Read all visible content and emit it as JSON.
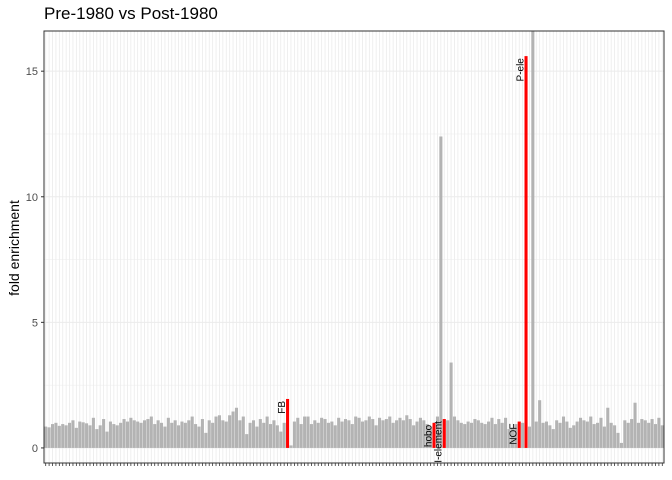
{
  "chart_data": {
    "type": "bar",
    "title": "Pre-1980 vs Post-1980",
    "xlabel": "",
    "ylabel": "fold enrichment",
    "ylim": [
      -0.6,
      16.6
    ],
    "y_ticks": [
      0,
      5,
      10,
      15
    ],
    "grid": true,
    "colors": {
      "default": "#b3b3b3",
      "highlight": "#ff0000"
    },
    "values": [
      0.85,
      0.82,
      0.95,
      1.0,
      0.88,
      0.95,
      0.9,
      1.0,
      1.1,
      0.8,
      1.05,
      1.02,
      0.98,
      0.9,
      1.2,
      0.75,
      0.9,
      1.15,
      0.65,
      1.05,
      0.95,
      0.9,
      1.0,
      1.15,
      1.05,
      1.2,
      1.1,
      1.05,
      1.0,
      1.1,
      1.15,
      1.25,
      0.95,
      1.1,
      1.0,
      0.85,
      1.2,
      1.0,
      1.1,
      0.9,
      1.05,
      1.0,
      1.1,
      1.25,
      0.95,
      0.85,
      1.15,
      0.6,
      1.1,
      1.0,
      1.25,
      1.3,
      1.1,
      1.05,
      1.3,
      1.45,
      1.6,
      1.1,
      1.25,
      0.55,
      1.0,
      1.1,
      0.85,
      1.15,
      1.0,
      1.25,
      0.95,
      1.1,
      0.9,
      0.65,
      1.0,
      1.95,
      0.1,
      1.05,
      1.2,
      0.95,
      1.25,
      1.25,
      0.95,
      1.1,
      1.0,
      1.2,
      1.15,
      1.0,
      1.05,
      0.9,
      1.2,
      1.05,
      1.15,
      1.1,
      0.95,
      1.25,
      1.2,
      1.05,
      1.1,
      1.25,
      1.15,
      0.9,
      1.2,
      1.1,
      1.15,
      1.25,
      1.0,
      1.1,
      1.2,
      1.1,
      1.3,
      1.15,
      0.9,
      1.05,
      1.2,
      1.1,
      0.95,
      0.85,
      1.0,
      1.25,
      12.4,
      1.15,
      1.1,
      3.4,
      1.25,
      1.1,
      1.0,
      0.95,
      1.05,
      1.0,
      1.15,
      1.1,
      1.0,
      0.95,
      1.05,
      1.2,
      0.95,
      1.15,
      1.0,
      1.2,
      0.75,
      0.8,
      0.95,
      1.05,
      1.0,
      15.6,
      0.85,
      16.6,
      1.05,
      1.9,
      1.0,
      1.05,
      0.9,
      0.75,
      1.1,
      1.0,
      1.25,
      1.05,
      0.8,
      0.9,
      1.05,
      1.2,
      1.1,
      1.05,
      1.25,
      0.95,
      1.0,
      1.2,
      0.85,
      1.6,
      1.0,
      0.9,
      0.6,
      0.2,
      1.1,
      1.0,
      1.15,
      1.8,
      1.0,
      1.15,
      1.1,
      1.0,
      1.15,
      0.95,
      1.2,
      0.9
    ],
    "highlighted": [
      {
        "index": 71,
        "label": "FB"
      },
      {
        "index": 114,
        "label": "hobo"
      },
      {
        "index": 117,
        "label": "I-element"
      },
      {
        "index": 139,
        "label": "NOF"
      },
      {
        "index": 141,
        "label": "P-ele"
      }
    ]
  }
}
